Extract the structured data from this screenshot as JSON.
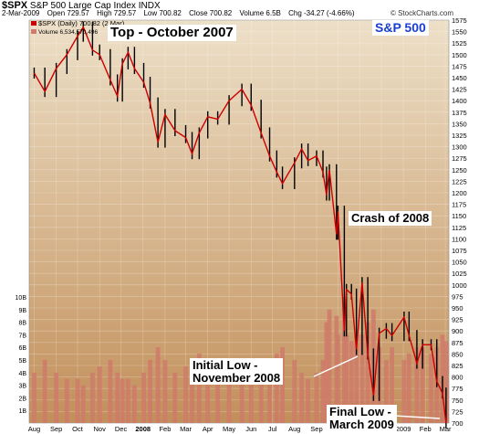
{
  "header": {
    "symbol": "$SPX",
    "index_name": "S&P 500 Large Cap Index",
    "exchange": "INDX",
    "date": "2-Mar-2009",
    "open": "Open 729.57",
    "high": "High 729.57",
    "low": "Low 700.82",
    "close": "Close 700.82",
    "volume": "Volume 6.5B",
    "change": "Chg -34.27 (-4.66%)",
    "brand": "© StockCharts.com"
  },
  "legend": {
    "price_entry": "$SPX (Daily) 700.82 (2 Mar)",
    "volume_entry": "Volume 6,534,570,496"
  },
  "annotations": {
    "top": "Top - October 2007",
    "sp500": "S&P 500",
    "crash": "Crash of 2008",
    "initial_low_1": "Initial Low -",
    "initial_low_2": "November 2008",
    "final_low_1": "Final Low -",
    "final_low_2": "March 2009"
  },
  "chart_data": {
    "type": "line",
    "title": "$SPX S&P 500 Large Cap Index INDX",
    "xlabel": "",
    "ylabel": "",
    "ylim": [
      700,
      1575
    ],
    "volume_ylim": [
      0,
      10
    ],
    "volume_unit": "B",
    "grid": true,
    "colors": {
      "background_top": "#ede0c8",
      "background_bottom": "#c28f5a",
      "price_line": "#cc0000",
      "candle": "#000000",
      "volume_bar": "#cf7a6a",
      "annotation_blue": "#1a3fcf"
    },
    "x_ticks": [
      "Aug",
      "Sep",
      "Oct",
      "Nov",
      "Dec",
      "2008",
      "Feb",
      "Mar",
      "Apr",
      "May",
      "Jun",
      "Jul",
      "Aug",
      "Sep",
      "Oct",
      "Nov",
      "Dec",
      "2009",
      "Feb",
      "Mar"
    ],
    "y_ticks": [
      700,
      725,
      750,
      775,
      800,
      825,
      850,
      875,
      900,
      925,
      950,
      975,
      1000,
      1025,
      1050,
      1075,
      1100,
      1125,
      1150,
      1175,
      1200,
      1225,
      1250,
      1275,
      1300,
      1325,
      1350,
      1375,
      1400,
      1425,
      1450,
      1475,
      1500,
      1525,
      1550,
      1575
    ],
    "volume_ticks": [
      "1B",
      "2B",
      "3B",
      "4B",
      "5B",
      "6B",
      "7B",
      "8B",
      "9B",
      "10B"
    ],
    "series": [
      {
        "months": [
          "2007-08-01",
          "2007-08-16",
          "2007-09-01",
          "2007-09-16",
          "2007-10-01",
          "2007-10-09",
          "2007-10-22",
          "2007-11-01",
          "2007-11-16",
          "2007-11-26",
          "2007-12-03",
          "2007-12-11",
          "2007-12-20",
          "2008-01-02",
          "2008-01-11",
          "2008-01-22",
          "2008-02-01",
          "2008-02-15",
          "2008-03-01",
          "2008-03-10",
          "2008-03-20",
          "2008-04-01",
          "2008-04-15",
          "2008-05-01",
          "2008-05-19",
          "2008-06-01",
          "2008-06-15",
          "2008-06-27",
          "2008-07-07",
          "2008-07-15",
          "2008-08-01",
          "2008-08-11",
          "2008-08-20",
          "2008-09-01",
          "2008-09-10",
          "2008-09-15",
          "2008-09-19",
          "2008-09-29",
          "2008-10-01",
          "2008-10-10",
          "2008-10-13",
          "2008-10-20",
          "2008-10-27",
          "2008-11-04",
          "2008-11-12",
          "2008-11-20",
          "2008-11-28",
          "2008-12-08",
          "2008-12-16",
          "2009-01-02",
          "2009-01-09",
          "2009-01-20",
          "2009-01-28",
          "2009-02-09",
          "2009-02-17",
          "2009-02-25",
          "2009-03-02"
        ],
        "close": [
          1460,
          1420,
          1470,
          1500,
          1540,
          1560,
          1510,
          1500,
          1445,
          1410,
          1480,
          1505,
          1470,
          1440,
          1395,
          1310,
          1370,
          1335,
          1320,
          1285,
          1330,
          1365,
          1360,
          1400,
          1425,
          1390,
          1330,
          1280,
          1245,
          1220,
          1265,
          1295,
          1270,
          1280,
          1245,
          1195,
          1250,
          1110,
          1160,
          900,
          990,
          980,
          860,
          1005,
          850,
          760,
          895,
          905,
          890,
          930,
          890,
          830,
          870,
          870,
          790,
          765,
          700
        ],
        "volume": [
          4,
          5,
          4,
          3.5,
          3.5,
          3,
          4,
          4.5,
          5,
          4,
          3.5,
          3.5,
          3,
          4,
          5,
          6,
          5,
          4,
          4.5,
          5,
          5.5,
          4,
          4,
          4,
          3.5,
          3.5,
          4,
          5,
          5.5,
          6,
          5,
          4,
          3.5,
          4,
          5,
          8,
          9,
          8.5,
          7,
          10,
          7,
          6.5,
          7,
          7,
          8,
          9,
          6,
          5,
          6,
          5,
          5.5,
          6,
          6,
          5.5,
          6,
          7,
          6.5
        ]
      }
    ]
  }
}
